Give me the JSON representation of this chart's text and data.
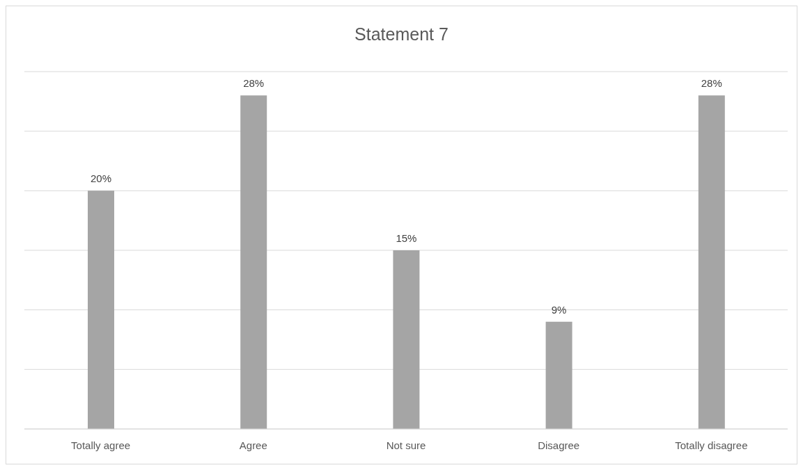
{
  "chart_data": {
    "type": "bar",
    "title": "Statement 7",
    "categories": [
      "Totally agree",
      "Agree",
      "Not sure",
      "Disagree",
      "Totally disagree"
    ],
    "values": [
      20,
      28,
      15,
      9,
      28
    ],
    "color": "#a5a5a5",
    "value_labels": [
      "20%",
      "28%",
      "15%",
      "9%",
      "28%"
    ],
    "ylim": [
      0,
      30
    ],
    "yticks": [
      {
        "value": 0,
        "label": null
      },
      {
        "value": 5,
        "label": null
      },
      {
        "value": 10,
        "label": null
      },
      {
        "value": 15,
        "label": null
      },
      {
        "value": 20,
        "label": null
      },
      {
        "value": 25,
        "label": null
      },
      {
        "value": 30,
        "label": null
      }
    ],
    "grid": "y",
    "tick_labels": "x",
    "legend": false
  }
}
